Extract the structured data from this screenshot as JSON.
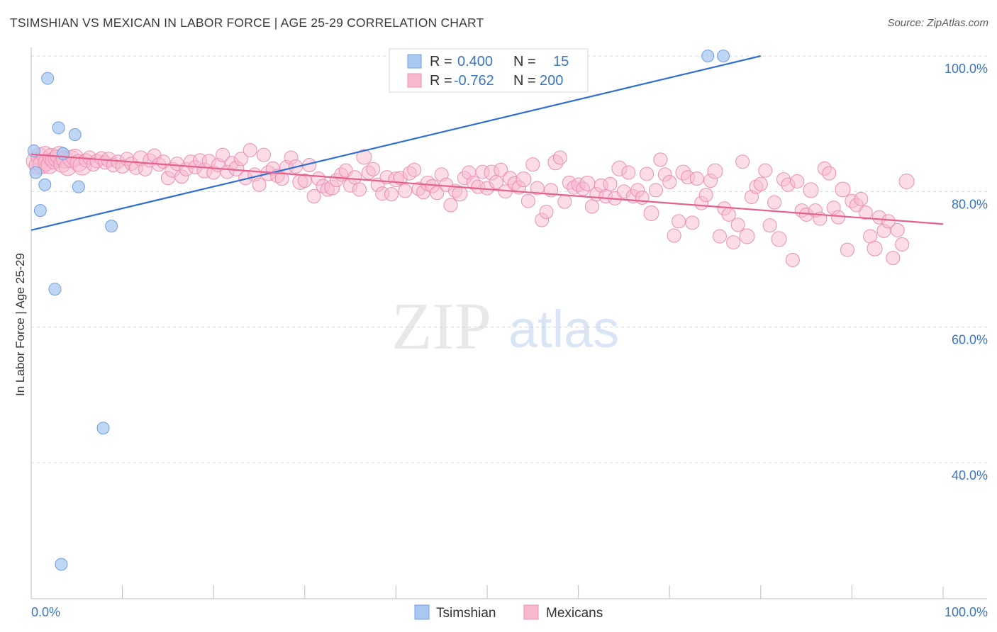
{
  "header": {
    "title": "TSIMSHIAN VS MEXICAN IN LABOR FORCE | AGE 25-29 CORRELATION CHART",
    "source": "Source: ZipAtlas.com"
  },
  "watermark": {
    "zip": "ZIP",
    "atlas": "atlas"
  },
  "legend": {
    "r_label": "R =",
    "n_label": "N =",
    "rows": [
      {
        "r": "0.400",
        "n": "15",
        "color": "#a9c8f2"
      },
      {
        "r": "-0.762",
        "n": "200",
        "color": "#f7b9cf"
      }
    ]
  },
  "chart_data": {
    "type": "scatter",
    "title": "TSIMSHIAN VS MEXICAN IN LABOR FORCE | AGE 25-29 CORRELATION CHART",
    "xlabel": "",
    "ylabel": "In Labor Force | Age 25-29",
    "xlim": [
      0,
      100
    ],
    "ylim": [
      20,
      102
    ],
    "x_tick_labels": [
      "0.0%",
      "100.0%"
    ],
    "y_ticks": [
      40,
      60,
      80,
      100
    ],
    "y_tick_labels": [
      "40.0%",
      "60.0%",
      "80.0%",
      "100.0%"
    ],
    "grid": true,
    "legend_position": "bottom-center",
    "colors": {
      "tsimshian_fill": "#a9c8f2",
      "tsimshian_line": "#2f6fd0",
      "mexicans_fill": "#f7b9cf",
      "mexicans_line": "#e4608d",
      "grid": "#d9d9d9",
      "axis_text": "#3a74c9"
    },
    "series": [
      {
        "name": "Tsimshian",
        "r": 0.4,
        "n": 15,
        "trend": [
          [
            0,
            74.3
          ],
          [
            80,
            100
          ]
        ],
        "points": [
          [
            0.3,
            86.0
          ],
          [
            0.5,
            82.8
          ],
          [
            1.0,
            77.2
          ],
          [
            1.5,
            81.0
          ],
          [
            1.8,
            96.7
          ],
          [
            2.6,
            65.6
          ],
          [
            3.0,
            89.4
          ],
          [
            3.3,
            25.0
          ],
          [
            3.5,
            85.6
          ],
          [
            4.8,
            88.4
          ],
          [
            5.2,
            80.7
          ],
          [
            7.9,
            45.1
          ],
          [
            8.8,
            74.9
          ],
          [
            74.2,
            100
          ],
          [
            75.9,
            100
          ]
        ]
      },
      {
        "name": "Mexicans",
        "r": -0.762,
        "n": 200,
        "trend": [
          [
            0,
            85.5
          ],
          [
            100,
            75.2
          ]
        ],
        "points": [
          [
            0.4,
            84.5
          ],
          [
            0.7,
            83.8
          ],
          [
            0.9,
            85.2
          ],
          [
            1.2,
            84.0
          ],
          [
            1.5,
            85.4
          ],
          [
            1.7,
            84.3
          ],
          [
            2.0,
            83.9
          ],
          [
            2.2,
            85.1
          ],
          [
            2.5,
            84.6
          ],
          [
            2.8,
            84.9
          ],
          [
            3.1,
            85.3
          ],
          [
            3.4,
            84.1
          ],
          [
            3.7,
            84.7
          ],
          [
            4.0,
            83.6
          ],
          [
            4.4,
            84.8
          ],
          [
            4.8,
            85.0
          ],
          [
            5.2,
            84.2
          ],
          [
            5.6,
            83.8
          ],
          [
            6.0,
            84.6
          ],
          [
            6.4,
            85.0
          ],
          [
            6.8,
            84.0
          ],
          [
            7.2,
            84.5
          ],
          [
            7.7,
            84.9
          ],
          [
            8.1,
            84.3
          ],
          [
            8.5,
            84.7
          ],
          [
            9.0,
            83.9
          ],
          [
            9.5,
            84.4
          ],
          [
            10.0,
            83.7
          ],
          [
            10.5,
            84.8
          ],
          [
            11.0,
            84.1
          ],
          [
            11.5,
            83.5
          ],
          [
            12.0,
            84.9
          ],
          [
            12.5,
            83.3
          ],
          [
            13.0,
            84.6
          ],
          [
            13.5,
            85.3
          ],
          [
            14.0,
            84.0
          ],
          [
            14.5,
            84.4
          ],
          [
            15.0,
            82.0
          ],
          [
            15.5,
            83.2
          ],
          [
            16.0,
            84.1
          ],
          [
            16.5,
            82.2
          ],
          [
            17.0,
            83.3
          ],
          [
            17.5,
            84.4
          ],
          [
            18.0,
            83.6
          ],
          [
            18.5,
            84.6
          ],
          [
            19.0,
            83.1
          ],
          [
            19.5,
            84.5
          ],
          [
            20.0,
            82.8
          ],
          [
            20.5,
            83.9
          ],
          [
            21.0,
            85.4
          ],
          [
            21.5,
            82.9
          ],
          [
            22.0,
            84.2
          ],
          [
            22.5,
            83.4
          ],
          [
            23.0,
            84.8
          ],
          [
            23.5,
            82.0
          ],
          [
            24.0,
            86.1
          ],
          [
            24.5,
            82.5
          ],
          [
            25.0,
            81.0
          ],
          [
            25.5,
            85.4
          ],
          [
            26.0,
            82.7
          ],
          [
            26.5,
            83.4
          ],
          [
            27.0,
            82.3
          ],
          [
            27.5,
            81.9
          ],
          [
            28.0,
            83.6
          ],
          [
            28.5,
            85.0
          ],
          [
            29.0,
            83.7
          ],
          [
            29.5,
            81.4
          ],
          [
            30.0,
            81.6
          ],
          [
            30.5,
            83.9
          ],
          [
            31.0,
            79.3
          ],
          [
            31.5,
            81.9
          ],
          [
            32.0,
            80.8
          ],
          [
            32.5,
            80.3
          ],
          [
            33.0,
            80.6
          ],
          [
            33.5,
            81.7
          ],
          [
            34.0,
            82.5
          ],
          [
            34.5,
            83.1
          ],
          [
            35.0,
            80.9
          ],
          [
            35.5,
            82.1
          ],
          [
            36.0,
            80.3
          ],
          [
            36.5,
            85.1
          ],
          [
            37.0,
            82.8
          ],
          [
            37.5,
            83.3
          ],
          [
            38.0,
            81.0
          ],
          [
            38.5,
            79.7
          ],
          [
            39.0,
            82.1
          ],
          [
            39.5,
            79.6
          ],
          [
            40.0,
            81.8
          ],
          [
            40.5,
            82.0
          ],
          [
            41.0,
            80.1
          ],
          [
            41.5,
            82.7
          ],
          [
            42.0,
            83.2
          ],
          [
            42.5,
            80.4
          ],
          [
            43.0,
            79.9
          ],
          [
            43.5,
            81.2
          ],
          [
            44.0,
            80.8
          ],
          [
            44.5,
            79.8
          ],
          [
            45.0,
            82.5
          ],
          [
            45.5,
            81.0
          ],
          [
            46.0,
            78.0
          ],
          [
            46.5,
            80.1
          ],
          [
            47.0,
            79.7
          ],
          [
            47.5,
            82.0
          ],
          [
            48.0,
            82.8
          ],
          [
            48.5,
            81.3
          ],
          [
            49.0,
            80.7
          ],
          [
            49.5,
            82.9
          ],
          [
            50.0,
            80.5
          ],
          [
            50.5,
            82.8
          ],
          [
            51.0,
            81.4
          ],
          [
            51.5,
            83.2
          ],
          [
            52.0,
            80.0
          ],
          [
            52.5,
            82.0
          ],
          [
            53.0,
            81.2
          ],
          [
            53.5,
            80.6
          ],
          [
            54.0,
            81.8
          ],
          [
            54.5,
            78.6
          ],
          [
            55.0,
            84.0
          ],
          [
            55.5,
            80.5
          ],
          [
            56.0,
            75.8
          ],
          [
            56.5,
            77.0
          ],
          [
            57.0,
            80.2
          ],
          [
            57.5,
            84.3
          ],
          [
            58.0,
            85.0
          ],
          [
            58.5,
            78.5
          ],
          [
            59.0,
            81.3
          ],
          [
            59.5,
            80.6
          ],
          [
            60.0,
            81.0
          ],
          [
            60.5,
            80.4
          ],
          [
            61.0,
            81.2
          ],
          [
            61.5,
            77.8
          ],
          [
            62.0,
            79.6
          ],
          [
            62.5,
            80.9
          ],
          [
            63.0,
            79.3
          ],
          [
            63.5,
            81.1
          ],
          [
            64.0,
            79.0
          ],
          [
            64.5,
            83.4
          ],
          [
            65.0,
            80.0
          ],
          [
            65.5,
            82.8
          ],
          [
            66.0,
            79.3
          ],
          [
            66.5,
            80.2
          ],
          [
            67.0,
            79.1
          ],
          [
            67.5,
            82.6
          ],
          [
            68.0,
            76.8
          ],
          [
            68.5,
            80.2
          ],
          [
            69.0,
            84.7
          ],
          [
            69.5,
            82.5
          ],
          [
            70.0,
            81.4
          ],
          [
            70.5,
            73.5
          ],
          [
            71.0,
            75.6
          ],
          [
            71.5,
            82.8
          ],
          [
            72.0,
            82.1
          ],
          [
            72.5,
            75.4
          ],
          [
            73.0,
            81.9
          ],
          [
            73.5,
            78.3
          ],
          [
            74.0,
            79.5
          ],
          [
            74.5,
            81.6
          ],
          [
            75.0,
            83.0
          ],
          [
            75.5,
            73.4
          ],
          [
            76.0,
            77.5
          ],
          [
            76.5,
            76.6
          ],
          [
            77.0,
            72.5
          ],
          [
            77.5,
            75.1
          ],
          [
            78.0,
            84.4
          ],
          [
            78.5,
            73.4
          ],
          [
            79.0,
            79.2
          ],
          [
            79.5,
            80.7
          ],
          [
            80.0,
            81.1
          ],
          [
            80.5,
            83.1
          ],
          [
            81.0,
            75.0
          ],
          [
            81.5,
            78.4
          ],
          [
            82.0,
            73.0
          ],
          [
            82.5,
            81.8
          ],
          [
            83.0,
            81.0
          ],
          [
            83.5,
            69.9
          ],
          [
            84.0,
            81.5
          ],
          [
            84.5,
            77.2
          ],
          [
            85.0,
            76.6
          ],
          [
            85.5,
            80.2
          ],
          [
            86.0,
            77.2
          ],
          [
            86.5,
            76.0
          ],
          [
            87.0,
            83.4
          ],
          [
            87.5,
            82.7
          ],
          [
            88.0,
            77.6
          ],
          [
            88.5,
            76.2
          ],
          [
            89.0,
            80.3
          ],
          [
            89.5,
            71.4
          ],
          [
            90.0,
            78.6
          ],
          [
            90.5,
            78.0
          ],
          [
            91.0,
            78.9
          ],
          [
            91.5,
            76.9
          ],
          [
            92.0,
            73.4
          ],
          [
            92.5,
            71.6
          ],
          [
            93.0,
            76.2
          ],
          [
            93.5,
            74.2
          ],
          [
            94.0,
            75.6
          ],
          [
            94.5,
            70.2
          ],
          [
            95.0,
            74.3
          ],
          [
            95.5,
            72.2
          ],
          [
            96.0,
            81.5
          ]
        ]
      }
    ]
  },
  "bottom_legend": [
    {
      "label": "Tsimshian",
      "color": "#a9c8f2"
    },
    {
      "label": "Mexicans",
      "color": "#f7b9cf"
    }
  ]
}
